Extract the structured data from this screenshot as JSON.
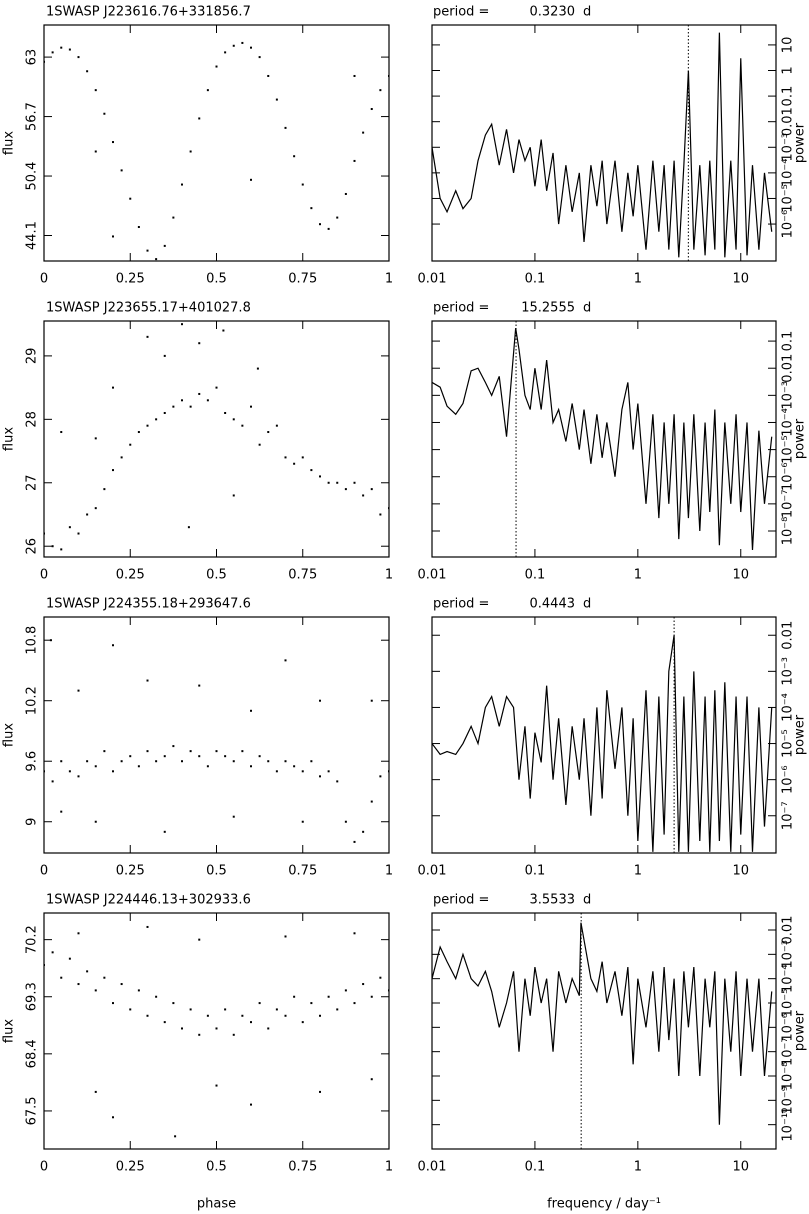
{
  "chart_data": [
    {
      "type": "scatter",
      "title": "1SWASP J223616.76+331856.7",
      "ylabel": "flux",
      "xlim": [
        0,
        1
      ],
      "xticks": [
        0,
        0.25,
        0.5,
        0.75,
        1
      ],
      "ylim": [
        41.4,
        66.4
      ],
      "yticks": [
        44.1,
        50.4,
        56.7,
        63
      ],
      "color": "#000000",
      "x": [
        0,
        0.025,
        0.05,
        0.075,
        0.1,
        0.125,
        0.15,
        0.175,
        0.2,
        0.225,
        0.25,
        0.275,
        0.3,
        0.325,
        0.35,
        0.375,
        0.4,
        0.425,
        0.45,
        0.475,
        0.5,
        0.525,
        0.55,
        0.575,
        0.6,
        0.625,
        0.65,
        0.675,
        0.7,
        0.725,
        0.75,
        0.775,
        0.8,
        0.825,
        0.85,
        0.875,
        0.9,
        0.925,
        0.95,
        0.975,
        1,
        0.15,
        0.6,
        0.2,
        0.9
      ],
      "values": [
        62.5,
        63.5,
        64,
        63.8,
        63,
        61.5,
        59.5,
        57,
        54,
        51,
        48,
        45,
        42.5,
        41.6,
        43,
        46,
        49.5,
        53,
        56.5,
        59.5,
        62,
        63.5,
        64.2,
        64.5,
        64,
        63,
        61,
        58.5,
        55.5,
        52.5,
        49.5,
        47,
        45.3,
        44.8,
        46,
        48.5,
        52,
        55,
        57.5,
        59.5,
        61,
        53,
        50,
        44,
        61
      ]
    },
    {
      "type": "line",
      "xscale": "log",
      "yscale": "log",
      "ylabel": "power",
      "period_prefix": "period =",
      "period": {
        "value": 0.323,
        "label": "0.3230"
      },
      "period_unit": "d",
      "xlim": [
        0.01,
        22
      ],
      "xticks": [
        0.01,
        0.1,
        1,
        10
      ],
      "ylim": [
        3.6e-08,
        60
      ],
      "yticks": [
        {
          "value": 1e-06,
          "label": "10⁻⁶"
        },
        {
          "value": 1e-05,
          "label": "10⁻⁵"
        },
        {
          "value": 0.0001,
          "label": "10⁻⁴"
        },
        {
          "value": 0.001,
          "label": "10⁻³"
        },
        0.01,
        0.1,
        1,
        10
      ],
      "color": "#000000",
      "x": [
        0.01,
        0.012,
        0.014,
        0.017,
        0.02,
        0.024,
        0.028,
        0.033,
        0.038,
        0.045,
        0.053,
        0.062,
        0.07,
        0.08,
        0.09,
        0.1,
        0.115,
        0.13,
        0.15,
        0.17,
        0.2,
        0.23,
        0.27,
        0.3,
        0.35,
        0.4,
        0.45,
        0.5,
        0.6,
        0.7,
        0.8,
        0.9,
        1,
        1.2,
        1.4,
        1.6,
        1.8,
        2,
        2.25,
        2.5,
        2.8,
        3.1,
        3.5,
        4,
        4.5,
        5,
        5.6,
        6.2,
        7,
        8,
        9,
        10,
        11.5,
        13,
        15,
        17,
        20
      ],
      "values": [
        0.001,
        1e-05,
        3e-06,
        2e-05,
        4e-06,
        1e-05,
        0.0003,
        0.003,
        0.008,
        0.0002,
        0.005,
        0.0001,
        0.002,
        0.0003,
        0.001,
        3e-05,
        0.002,
        2e-05,
        0.0006,
        1e-06,
        0.0002,
        3e-06,
        0.0001,
        2e-07,
        0.0002,
        5e-06,
        0.0003,
        1e-06,
        0.0003,
        5e-07,
        0.0001,
        2e-06,
        0.0002,
        1e-07,
        0.0003,
        5e-07,
        0.0002,
        1e-07,
        0.0003,
        5e-08,
        0.0002,
        1,
        1e-07,
        0.0002,
        6e-08,
        0.0003,
        1e-07,
        30,
        5e-08,
        0.0003,
        1e-07,
        3,
        6e-08,
        0.0002,
        1e-07,
        0.0001,
        5e-07
      ]
    },
    {
      "type": "scatter",
      "title": "1SWASP J223655.17+401027.8",
      "ylabel": "flux",
      "xlim": [
        0,
        1
      ],
      "xticks": [
        0,
        0.25,
        0.5,
        0.75,
        1
      ],
      "ylim": [
        25.83,
        29.55
      ],
      "yticks": [
        26,
        27,
        28,
        29
      ],
      "color": "#000000",
      "x": [
        0,
        0.025,
        0.05,
        0.075,
        0.1,
        0.125,
        0.15,
        0.175,
        0.2,
        0.225,
        0.25,
        0.275,
        0.3,
        0.325,
        0.35,
        0.375,
        0.4,
        0.425,
        0.45,
        0.475,
        0.5,
        0.525,
        0.55,
        0.575,
        0.6,
        0.625,
        0.65,
        0.675,
        0.7,
        0.725,
        0.75,
        0.775,
        0.8,
        0.825,
        0.85,
        0.875,
        0.9,
        0.925,
        0.95,
        0.975,
        1,
        0.3,
        0.4,
        0.45,
        0.52,
        0.2,
        0.35,
        0.15,
        0.62,
        0.05,
        0.42,
        0.55
      ],
      "values": [
        26.2,
        26,
        25.95,
        26.3,
        26.2,
        26.5,
        26.6,
        26.9,
        27.2,
        27.4,
        27.6,
        27.8,
        27.9,
        28,
        28.1,
        28.2,
        28.3,
        28.2,
        28.4,
        28.3,
        28.5,
        28.1,
        28,
        27.9,
        28.2,
        27.6,
        27.8,
        27.9,
        27.4,
        27.3,
        27.4,
        27.2,
        27.1,
        27,
        27,
        26.9,
        27,
        26.8,
        26.9,
        26.5,
        26.6,
        29.3,
        29.5,
        29.2,
        29.4,
        28.5,
        29,
        27.7,
        28.8,
        27.8,
        26.3,
        26.8
      ]
    },
    {
      "type": "line",
      "xscale": "log",
      "yscale": "log",
      "ylabel": "power",
      "period_prefix": "period =",
      "period": 15.2555,
      "period_unit": "d",
      "xlim": [
        0.01,
        22
      ],
      "xticks": [
        0.01,
        0.1,
        1,
        10
      ],
      "ylim": [
        1.1e-09,
        0.55
      ],
      "yticks": [
        {
          "value": 1e-08,
          "label": "10⁻⁸"
        },
        {
          "value": 1e-07,
          "label": "10⁻⁷"
        },
        {
          "value": 1e-06,
          "label": "10⁻⁶"
        },
        {
          "value": 1e-05,
          "label": "10⁻⁵"
        },
        {
          "value": 0.0001,
          "label": "10⁻⁴"
        },
        {
          "value": 0.001,
          "label": "10⁻³"
        },
        0.01,
        0.1
      ],
      "color": "#000000",
      "x": [
        0.01,
        0.012,
        0.014,
        0.017,
        0.02,
        0.024,
        0.028,
        0.033,
        0.038,
        0.045,
        0.053,
        0.065,
        0.07,
        0.08,
        0.09,
        0.1,
        0.115,
        0.13,
        0.15,
        0.17,
        0.2,
        0.23,
        0.27,
        0.3,
        0.35,
        0.4,
        0.45,
        0.5,
        0.6,
        0.7,
        0.8,
        0.9,
        1,
        1.2,
        1.4,
        1.6,
        1.8,
        2,
        2.25,
        2.5,
        2.8,
        3.1,
        3.5,
        4,
        4.5,
        5,
        5.6,
        6.2,
        7,
        8,
        9,
        10,
        11.5,
        13,
        15,
        17,
        20
      ],
      "values": [
        0.003,
        0.002,
        0.0004,
        0.0002,
        0.0005,
        0.008,
        0.01,
        0.003,
        0.001,
        0.005,
        3e-05,
        0.3,
        0.05,
        0.001,
        0.0003,
        0.01,
        0.0003,
        0.02,
        0.0001,
        0.0003,
        2e-05,
        0.0005,
        1e-05,
        0.0003,
        3e-06,
        0.0002,
        5e-06,
        0.0001,
        1e-06,
        0.0003,
        0.003,
        1e-05,
        0.0005,
        1e-07,
        0.0002,
        3e-08,
        0.0001,
        1e-07,
        0.0002,
        5e-09,
        0.0001,
        3e-08,
        0.0002,
        1e-08,
        0.0001,
        5e-08,
        0.0003,
        3e-09,
        0.0001,
        1e-07,
        0.0002,
        5e-08,
        0.0001,
        2e-09,
        5e-05,
        1e-07,
        3e-05
      ]
    },
    {
      "type": "scatter",
      "title": "1SWASP J224355.18+293647.6",
      "ylabel": "flux",
      "xlim": [
        0,
        1
      ],
      "xticks": [
        0,
        0.25,
        0.5,
        0.75,
        1
      ],
      "ylim": [
        8.69,
        11.03
      ],
      "yticks": [
        9,
        9.6,
        10.2,
        10.8
      ],
      "color": "#000000",
      "x": [
        0,
        0.025,
        0.05,
        0.075,
        0.1,
        0.125,
        0.15,
        0.175,
        0.2,
        0.225,
        0.25,
        0.275,
        0.3,
        0.325,
        0.35,
        0.375,
        0.4,
        0.425,
        0.45,
        0.475,
        0.5,
        0.525,
        0.55,
        0.575,
        0.6,
        0.625,
        0.65,
        0.675,
        0.7,
        0.725,
        0.75,
        0.775,
        0.8,
        0.825,
        0.85,
        0.875,
        0.9,
        0.925,
        0.95,
        0.975,
        1,
        0.02,
        0.1,
        0.2,
        0.3,
        0.45,
        0.6,
        0.7,
        0.8,
        0.95,
        0.15,
        0.35,
        0.55,
        0.75,
        0.05
      ],
      "values": [
        9.5,
        9.4,
        9.6,
        9.5,
        9.45,
        9.6,
        9.55,
        9.7,
        9.5,
        9.6,
        9.65,
        9.55,
        9.7,
        9.6,
        9.65,
        9.75,
        9.6,
        9.7,
        9.65,
        9.55,
        9.7,
        9.65,
        9.6,
        9.7,
        9.55,
        9.65,
        9.6,
        9.5,
        9.6,
        9.55,
        9.5,
        9.6,
        9.45,
        9.5,
        9.4,
        9,
        8.8,
        8.9,
        9.2,
        9.45,
        9.5,
        10.8,
        10.3,
        10.75,
        10.4,
        10.35,
        10.1,
        10.6,
        10.2,
        10.2,
        9,
        8.9,
        9.05,
        9,
        9.1
      ]
    },
    {
      "type": "line",
      "xscale": "log",
      "yscale": "log",
      "ylabel": "power",
      "period_prefix": "period =",
      "period": 0.4443,
      "period_unit": "d",
      "xlim": [
        0.01,
        22
      ],
      "xticks": [
        0.01,
        0.1,
        1,
        10
      ],
      "ylim": [
        9.3e-09,
        0.032
      ],
      "yticks": [
        {
          "value": 1e-07,
          "label": "10⁻⁷"
        },
        {
          "value": 1e-06,
          "label": "10⁻⁶"
        },
        {
          "value": 1e-05,
          "label": "10⁻⁵"
        },
        {
          "value": 0.0001,
          "label": "10⁻⁴"
        },
        {
          "value": 0.001,
          "label": "10⁻³"
        },
        0.01
      ],
      "color": "#000000",
      "x": [
        0.01,
        0.012,
        0.014,
        0.017,
        0.02,
        0.024,
        0.028,
        0.033,
        0.038,
        0.045,
        0.053,
        0.062,
        0.07,
        0.08,
        0.09,
        0.1,
        0.115,
        0.13,
        0.15,
        0.17,
        0.2,
        0.23,
        0.27,
        0.3,
        0.35,
        0.4,
        0.45,
        0.5,
        0.6,
        0.7,
        0.8,
        0.9,
        1,
        1.2,
        1.4,
        1.6,
        1.8,
        2,
        2.25,
        2.5,
        2.8,
        3.1,
        3.5,
        4,
        4.5,
        5,
        5.6,
        6.2,
        7,
        8,
        9,
        10,
        11.5,
        13,
        15,
        17,
        20
      ],
      "values": [
        1e-05,
        5e-06,
        6e-06,
        5e-06,
        1e-05,
        3e-05,
        1e-05,
        0.0001,
        0.0002,
        3e-05,
        0.0002,
        0.0001,
        1e-06,
        3e-05,
        3e-07,
        2e-05,
        3e-06,
        0.0004,
        1e-06,
        5e-05,
        2e-07,
        3e-05,
        1e-06,
        5e-05,
        1e-07,
        0.0001,
        3e-07,
        0.0003,
        2e-06,
        0.0001,
        1e-07,
        5e-05,
        2e-08,
        0.0003,
        1e-08,
        0.0002,
        3e-08,
        0.001,
        0.01,
        1e-08,
        0.0002,
        1e-08,
        0.001,
        2e-08,
        0.0002,
        1e-08,
        0.0003,
        2e-08,
        0.0005,
        1e-08,
        0.0002,
        3e-08,
        0.0002,
        1e-08,
        0.0001,
        5e-08,
        0.0001
      ]
    },
    {
      "type": "scatter",
      "title": "1SWASP J224446.13+302933.6",
      "ylabel": "flux",
      "xlabel": "phase",
      "xlim": [
        0,
        1
      ],
      "xticks": [
        0,
        0.25,
        0.5,
        0.75,
        1
      ],
      "ylim": [
        66.9,
        70.62
      ],
      "yticks": [
        67.5,
        68.4,
        69.3,
        70.2
      ],
      "color": "#000000",
      "x": [
        0,
        0.025,
        0.05,
        0.075,
        0.1,
        0.125,
        0.15,
        0.175,
        0.2,
        0.225,
        0.25,
        0.275,
        0.3,
        0.325,
        0.35,
        0.375,
        0.4,
        0.425,
        0.45,
        0.475,
        0.5,
        0.525,
        0.55,
        0.575,
        0.6,
        0.625,
        0.65,
        0.675,
        0.7,
        0.725,
        0.75,
        0.775,
        0.8,
        0.825,
        0.85,
        0.875,
        0.9,
        0.925,
        0.95,
        0.975,
        1,
        0.1,
        0.3,
        0.45,
        0.7,
        0.9,
        0.15,
        0.2,
        0.38,
        0.5,
        0.6,
        0.8,
        0.95
      ],
      "values": [
        69.8,
        70,
        69.6,
        69.9,
        69.5,
        69.7,
        69.4,
        69.6,
        69.2,
        69.5,
        69.1,
        69.4,
        69,
        69.3,
        68.9,
        69.2,
        68.8,
        69.1,
        68.7,
        69,
        68.8,
        69.1,
        68.7,
        69,
        68.9,
        69.2,
        68.8,
        69.1,
        69,
        69.3,
        68.9,
        69.2,
        69,
        69.3,
        69.1,
        69.4,
        69.2,
        69.5,
        69.3,
        69.6,
        69.4,
        70.3,
        70.4,
        70.2,
        70.25,
        70.3,
        67.8,
        67.4,
        67.1,
        67.9,
        67.6,
        67.8,
        68
      ]
    },
    {
      "type": "line",
      "xscale": "log",
      "yscale": "log",
      "ylabel": "power",
      "xlabel": "frequency / day⁻¹",
      "period_prefix": "period =",
      "period": 3.5533,
      "period_unit": "d",
      "xlim": [
        0.01,
        22
      ],
      "xticks": [
        0.01,
        0.1,
        1,
        10
      ],
      "ylim": [
        1e-11,
        0.05
      ],
      "yticks": [
        {
          "value": 1e-10,
          "label": "10⁻¹⁰"
        },
        {
          "value": 1e-09,
          "label": "10⁻⁹"
        },
        {
          "value": 1e-08,
          "label": "10⁻⁸"
        },
        {
          "value": 1e-07,
          "label": "10⁻⁷"
        },
        {
          "value": 1e-06,
          "label": "10⁻⁶"
        },
        {
          "value": 1e-05,
          "label": "10⁻⁵"
        },
        {
          "value": 0.0001,
          "label": "10⁻⁴"
        },
        {
          "value": 0.001,
          "label": "10⁻³"
        },
        0.01
      ],
      "color": "#000000",
      "x": [
        0.01,
        0.012,
        0.014,
        0.017,
        0.02,
        0.024,
        0.028,
        0.033,
        0.038,
        0.045,
        0.053,
        0.062,
        0.07,
        0.08,
        0.09,
        0.1,
        0.115,
        0.13,
        0.15,
        0.17,
        0.2,
        0.23,
        0.27,
        0.28,
        0.35,
        0.4,
        0.45,
        0.5,
        0.6,
        0.7,
        0.8,
        0.9,
        1,
        1.2,
        1.4,
        1.6,
        1.8,
        2,
        2.25,
        2.5,
        2.8,
        3.1,
        3.5,
        4,
        4.5,
        5,
        5.6,
        6.2,
        7,
        8,
        9,
        10,
        11.5,
        13,
        15,
        17,
        20
      ],
      "values": [
        0.0001,
        0.002,
        0.0005,
        0.0001,
        0.001,
        0.0001,
        5e-05,
        0.0002,
        3e-05,
        1e-06,
        1e-05,
        0.0002,
        1e-07,
        0.0001,
        3e-06,
        0.0003,
        1e-05,
        0.0001,
        1e-07,
        0.0002,
        1e-05,
        0.0001,
        2e-05,
        0.02,
        0.0001,
        3e-05,
        0.0005,
        1e-05,
        0.0002,
        3e-06,
        0.0003,
        3e-08,
        0.0001,
        1e-06,
        0.0002,
        1e-07,
        0.0003,
        3e-07,
        0.0001,
        1e-08,
        0.0002,
        1e-06,
        0.0003,
        1e-08,
        0.0001,
        1e-06,
        0.0002,
        1e-10,
        0.0001,
        1e-07,
        0.0002,
        1e-08,
        0.0001,
        1e-07,
        0.0001,
        1e-08,
        3e-05
      ]
    }
  ]
}
